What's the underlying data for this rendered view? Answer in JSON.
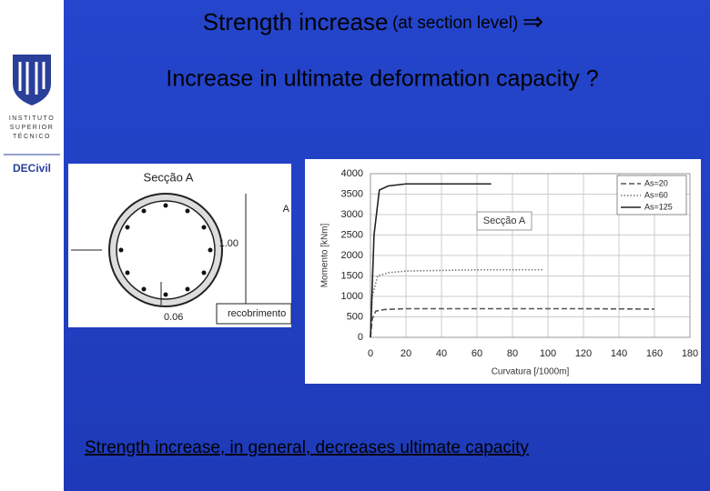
{
  "header": {
    "title": "Strength increase",
    "title_note": "(at section level)",
    "arrow": "⇒",
    "subtitle": "Increase in ultimate deformation capacity ?"
  },
  "logo": {
    "lines": [
      "INSTITUTO",
      "SUPERIOR",
      "TÉCNICO"
    ],
    "department": "DECivil"
  },
  "section_figure": {
    "title": "Secção A",
    "cut_label": "A",
    "dimension": "1.00",
    "cover_dimension": "0.06",
    "cover_label": "recobrimento"
  },
  "chart_data": {
    "type": "line",
    "annotation": "Secção A",
    "xlabel": "Curvatura [/1000m]",
    "ylabel": "Momento [kNm]",
    "xlim": [
      0,
      180
    ],
    "xticks": [
      0,
      20,
      40,
      60,
      80,
      100,
      120,
      140,
      160,
      180
    ],
    "ylim": [
      0,
      4000
    ],
    "yticks": [
      0,
      500,
      1000,
      1500,
      2000,
      2500,
      3000,
      3500,
      4000
    ],
    "grid": true,
    "legend": "top-right",
    "series": [
      {
        "name": "As=20",
        "color": "#555555",
        "style": "dashed",
        "x": [
          0,
          1,
          3,
          8,
          20,
          60,
          120,
          160
        ],
        "values": [
          0,
          450,
          640,
          680,
          700,
          700,
          700,
          690
        ]
      },
      {
        "name": "As=60",
        "color": "#777777",
        "style": "dotted",
        "x": [
          0,
          1,
          4,
          10,
          20,
          60,
          97
        ],
        "values": [
          0,
          1000,
          1500,
          1580,
          1620,
          1650,
          1650
        ]
      },
      {
        "name": "As=125",
        "color": "#222222",
        "style": "solid",
        "x": [
          0,
          2,
          5,
          10,
          20,
          40,
          68
        ],
        "values": [
          0,
          2500,
          3600,
          3700,
          3750,
          3750,
          3750
        ]
      }
    ]
  },
  "footer": {
    "conclusion": "Strength increase, in general, decreases ultimate capacity"
  }
}
